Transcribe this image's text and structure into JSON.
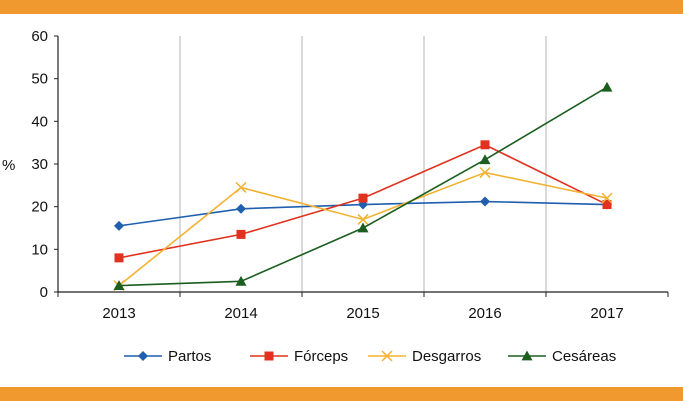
{
  "colors": {
    "band": "#f0992e",
    "axis": "#222222",
    "grid": "#b3b3b3"
  },
  "chart_data": {
    "type": "line",
    "categories": [
      "2013",
      "2014",
      "2015",
      "2016",
      "2017"
    ],
    "ylabel": "%",
    "ylim": [
      0,
      60
    ],
    "yticks": [
      "0",
      "10",
      "20",
      "30",
      "40",
      "50",
      "60"
    ],
    "grid": "vertical",
    "legend": "bottom",
    "series": [
      {
        "name": "Partos",
        "color": "#1f5fad",
        "marker": "diamond",
        "values": [
          15.5,
          19.5,
          20.5,
          21.2,
          20.5
        ]
      },
      {
        "name": "Fórceps",
        "color": "#e0321e",
        "marker": "square",
        "values": [
          8,
          13.5,
          22,
          34.5,
          20.5
        ]
      },
      {
        "name": "Desgarros",
        "color": "#f2b233",
        "marker": "cross",
        "values": [
          1.5,
          24.5,
          17,
          28,
          22
        ]
      },
      {
        "name": "Cesáreas",
        "color": "#1b5e20",
        "marker": "triangle",
        "values": [
          1.5,
          2.5,
          15,
          31,
          48
        ]
      }
    ]
  }
}
